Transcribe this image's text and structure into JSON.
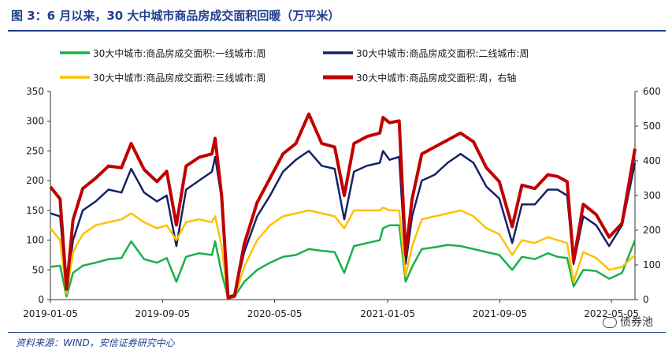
{
  "figure": {
    "title": "图 3：6 月以来，30 大中城市商品房成交面积回暖（万平米）",
    "source": "资料来源：WIND，安信证券研究中心",
    "watermark": "债券池"
  },
  "chart_data": {
    "type": "line",
    "title": "图 3：6 月以来，30 大中城市商品房成交面积回暖（万平米）",
    "x_ticks": [
      "2019-01-05",
      "2019-09-05",
      "2020-05-05",
      "2021-01-05",
      "2021-09-05",
      "2022-05-05"
    ],
    "x_range": [
      "2019-01-05",
      "2022-06-25"
    ],
    "y_left": {
      "range": [
        0,
        350
      ],
      "ticks": [
        0,
        50,
        100,
        150,
        200,
        250,
        300,
        350
      ]
    },
    "y_right": {
      "range": [
        0,
        600
      ],
      "ticks": [
        0,
        100,
        200,
        300,
        400,
        500,
        600
      ]
    },
    "grid": false,
    "legend_position": "top",
    "colors": {
      "tier1": "#1ab04a",
      "tier2": "#14226b",
      "tier3": "#ffc000",
      "total": "#c00000"
    },
    "series": [
      {
        "name": "30大中城市:商品房成交面积:一线城市:周",
        "axis": "left",
        "points": [
          [
            "2019-01-05",
            55
          ],
          [
            "2019-01-26",
            57
          ],
          [
            "2019-02-09",
            5
          ],
          [
            "2019-02-23",
            45
          ],
          [
            "2019-03-16",
            57
          ],
          [
            "2019-04-13",
            62
          ],
          [
            "2019-05-11",
            68
          ],
          [
            "2019-06-08",
            70
          ],
          [
            "2019-06-29",
            98
          ],
          [
            "2019-07-27",
            68
          ],
          [
            "2019-08-24",
            62
          ],
          [
            "2019-09-14",
            70
          ],
          [
            "2019-10-05",
            30
          ],
          [
            "2019-10-26",
            72
          ],
          [
            "2019-11-23",
            78
          ],
          [
            "2019-12-21",
            75
          ],
          [
            "2019-12-28",
            98
          ],
          [
            "2020-01-11",
            45
          ],
          [
            "2020-01-25",
            3
          ],
          [
            "2020-02-08",
            5
          ],
          [
            "2020-02-29",
            30
          ],
          [
            "2020-03-28",
            50
          ],
          [
            "2020-04-25",
            62
          ],
          [
            "2020-05-23",
            72
          ],
          [
            "2020-06-20",
            75
          ],
          [
            "2020-07-18",
            85
          ],
          [
            "2020-08-15",
            82
          ],
          [
            "2020-09-12",
            80
          ],
          [
            "2020-10-03",
            45
          ],
          [
            "2020-10-24",
            90
          ],
          [
            "2020-11-21",
            95
          ],
          [
            "2020-12-19",
            100
          ],
          [
            "2020-12-26",
            120
          ],
          [
            "2021-01-09",
            125
          ],
          [
            "2021-01-30",
            125
          ],
          [
            "2021-02-13",
            30
          ],
          [
            "2021-02-27",
            55
          ],
          [
            "2021-03-20",
            85
          ],
          [
            "2021-04-17",
            88
          ],
          [
            "2021-05-15",
            92
          ],
          [
            "2021-06-12",
            90
          ],
          [
            "2021-07-10",
            85
          ],
          [
            "2021-08-07",
            80
          ],
          [
            "2021-09-04",
            75
          ],
          [
            "2021-10-02",
            50
          ],
          [
            "2021-10-23",
            72
          ],
          [
            "2021-11-20",
            68
          ],
          [
            "2021-12-18",
            78
          ],
          [
            "2022-01-08",
            72
          ],
          [
            "2022-01-29",
            70
          ],
          [
            "2022-02-12",
            22
          ],
          [
            "2022-03-05",
            50
          ],
          [
            "2022-04-02",
            48
          ],
          [
            "2022-04-30",
            35
          ],
          [
            "2022-05-28",
            45
          ],
          [
            "2022-06-25",
            100
          ]
        ]
      },
      {
        "name": "30大中城市:商品房成交面积:二线城市:周",
        "axis": "left",
        "points": [
          [
            "2019-01-05",
            145
          ],
          [
            "2019-01-26",
            140
          ],
          [
            "2019-02-09",
            15
          ],
          [
            "2019-02-23",
            100
          ],
          [
            "2019-03-16",
            150
          ],
          [
            "2019-04-13",
            165
          ],
          [
            "2019-05-11",
            185
          ],
          [
            "2019-06-08",
            180
          ],
          [
            "2019-06-29",
            220
          ],
          [
            "2019-07-27",
            180
          ],
          [
            "2019-08-24",
            165
          ],
          [
            "2019-09-14",
            175
          ],
          [
            "2019-10-05",
            90
          ],
          [
            "2019-10-26",
            185
          ],
          [
            "2019-11-23",
            200
          ],
          [
            "2019-12-21",
            215
          ],
          [
            "2019-12-28",
            240
          ],
          [
            "2020-01-11",
            170
          ],
          [
            "2020-01-25",
            5
          ],
          [
            "2020-02-08",
            8
          ],
          [
            "2020-02-29",
            80
          ],
          [
            "2020-03-28",
            140
          ],
          [
            "2020-04-25",
            175
          ],
          [
            "2020-05-23",
            215
          ],
          [
            "2020-06-20",
            235
          ],
          [
            "2020-07-18",
            250
          ],
          [
            "2020-08-15",
            225
          ],
          [
            "2020-09-12",
            220
          ],
          [
            "2020-10-03",
            135
          ],
          [
            "2020-10-24",
            215
          ],
          [
            "2020-11-21",
            225
          ],
          [
            "2020-12-19",
            230
          ],
          [
            "2020-12-26",
            250
          ],
          [
            "2021-01-09",
            235
          ],
          [
            "2021-01-30",
            240
          ],
          [
            "2021-02-13",
            60
          ],
          [
            "2021-02-27",
            140
          ],
          [
            "2021-03-20",
            200
          ],
          [
            "2021-04-17",
            210
          ],
          [
            "2021-05-15",
            230
          ],
          [
            "2021-06-12",
            245
          ],
          [
            "2021-07-10",
            230
          ],
          [
            "2021-08-07",
            190
          ],
          [
            "2021-09-04",
            170
          ],
          [
            "2021-10-02",
            95
          ],
          [
            "2021-10-23",
            160
          ],
          [
            "2021-11-20",
            160
          ],
          [
            "2021-12-18",
            185
          ],
          [
            "2022-01-08",
            185
          ],
          [
            "2022-01-29",
            175
          ],
          [
            "2022-02-12",
            60
          ],
          [
            "2022-03-05",
            140
          ],
          [
            "2022-04-02",
            125
          ],
          [
            "2022-04-30",
            90
          ],
          [
            "2022-05-28",
            125
          ],
          [
            "2022-06-25",
            230
          ]
        ]
      },
      {
        "name": "30大中城市:商品房成交面积:三线城市:周",
        "axis": "left",
        "points": [
          [
            "2019-01-05",
            120
          ],
          [
            "2019-01-26",
            100
          ],
          [
            "2019-02-09",
            10
          ],
          [
            "2019-02-23",
            80
          ],
          [
            "2019-03-16",
            110
          ],
          [
            "2019-04-13",
            125
          ],
          [
            "2019-05-11",
            130
          ],
          [
            "2019-06-08",
            135
          ],
          [
            "2019-06-29",
            145
          ],
          [
            "2019-07-27",
            130
          ],
          [
            "2019-08-24",
            120
          ],
          [
            "2019-09-14",
            125
          ],
          [
            "2019-10-05",
            100
          ],
          [
            "2019-10-26",
            130
          ],
          [
            "2019-11-23",
            135
          ],
          [
            "2019-12-21",
            130
          ],
          [
            "2019-12-28",
            140
          ],
          [
            "2020-01-11",
            90
          ],
          [
            "2020-01-25",
            2
          ],
          [
            "2020-02-08",
            4
          ],
          [
            "2020-02-29",
            55
          ],
          [
            "2020-03-28",
            100
          ],
          [
            "2020-04-25",
            125
          ],
          [
            "2020-05-23",
            140
          ],
          [
            "2020-06-20",
            145
          ],
          [
            "2020-07-18",
            150
          ],
          [
            "2020-08-15",
            145
          ],
          [
            "2020-09-12",
            140
          ],
          [
            "2020-10-03",
            120
          ],
          [
            "2020-10-24",
            150
          ],
          [
            "2020-11-21",
            150
          ],
          [
            "2020-12-19",
            150
          ],
          [
            "2020-12-26",
            155
          ],
          [
            "2021-01-09",
            150
          ],
          [
            "2021-01-30",
            150
          ],
          [
            "2021-02-13",
            40
          ],
          [
            "2021-02-27",
            90
          ],
          [
            "2021-03-20",
            135
          ],
          [
            "2021-04-17",
            140
          ],
          [
            "2021-05-15",
            145
          ],
          [
            "2021-06-12",
            150
          ],
          [
            "2021-07-10",
            140
          ],
          [
            "2021-08-07",
            120
          ],
          [
            "2021-09-04",
            110
          ],
          [
            "2021-10-02",
            75
          ],
          [
            "2021-10-23",
            100
          ],
          [
            "2021-11-20",
            95
          ],
          [
            "2021-12-18",
            105
          ],
          [
            "2022-01-08",
            100
          ],
          [
            "2022-01-29",
            95
          ],
          [
            "2022-02-12",
            30
          ],
          [
            "2022-03-05",
            80
          ],
          [
            "2022-04-02",
            70
          ],
          [
            "2022-04-30",
            50
          ],
          [
            "2022-05-28",
            55
          ],
          [
            "2022-06-25",
            75
          ]
        ]
      },
      {
        "name": "30大中城市:商品房成交面积:周，右轴",
        "axis": "right",
        "points": [
          [
            "2019-01-05",
            325
          ],
          [
            "2019-01-26",
            290
          ],
          [
            "2019-02-09",
            30
          ],
          [
            "2019-02-23",
            230
          ],
          [
            "2019-03-16",
            320
          ],
          [
            "2019-04-13",
            350
          ],
          [
            "2019-05-11",
            385
          ],
          [
            "2019-06-08",
            380
          ],
          [
            "2019-06-29",
            450
          ],
          [
            "2019-07-27",
            375
          ],
          [
            "2019-08-24",
            340
          ],
          [
            "2019-09-14",
            370
          ],
          [
            "2019-10-05",
            215
          ],
          [
            "2019-10-26",
            385
          ],
          [
            "2019-11-23",
            410
          ],
          [
            "2019-12-21",
            420
          ],
          [
            "2019-12-28",
            465
          ],
          [
            "2020-01-11",
            300
          ],
          [
            "2020-01-25",
            5
          ],
          [
            "2020-02-08",
            10
          ],
          [
            "2020-02-29",
            160
          ],
          [
            "2020-03-28",
            280
          ],
          [
            "2020-04-25",
            350
          ],
          [
            "2020-05-23",
            420
          ],
          [
            "2020-06-20",
            450
          ],
          [
            "2020-07-18",
            535
          ],
          [
            "2020-08-15",
            450
          ],
          [
            "2020-09-12",
            440
          ],
          [
            "2020-10-03",
            300
          ],
          [
            "2020-10-24",
            450
          ],
          [
            "2020-11-21",
            470
          ],
          [
            "2020-12-19",
            480
          ],
          [
            "2020-12-26",
            525
          ],
          [
            "2021-01-09",
            510
          ],
          [
            "2021-01-30",
            515
          ],
          [
            "2021-02-13",
            130
          ],
          [
            "2021-02-27",
            290
          ],
          [
            "2021-03-20",
            420
          ],
          [
            "2021-04-17",
            440
          ],
          [
            "2021-05-15",
            460
          ],
          [
            "2021-06-12",
            480
          ],
          [
            "2021-07-10",
            455
          ],
          [
            "2021-08-07",
            380
          ],
          [
            "2021-09-04",
            340
          ],
          [
            "2021-10-02",
            210
          ],
          [
            "2021-10-23",
            330
          ],
          [
            "2021-11-20",
            320
          ],
          [
            "2021-12-18",
            360
          ],
          [
            "2022-01-08",
            355
          ],
          [
            "2022-01-29",
            340
          ],
          [
            "2022-02-12",
            110
          ],
          [
            "2022-03-05",
            275
          ],
          [
            "2022-04-02",
            245
          ],
          [
            "2022-04-30",
            180
          ],
          [
            "2022-05-28",
            220
          ],
          [
            "2022-06-25",
            435
          ]
        ]
      }
    ]
  }
}
